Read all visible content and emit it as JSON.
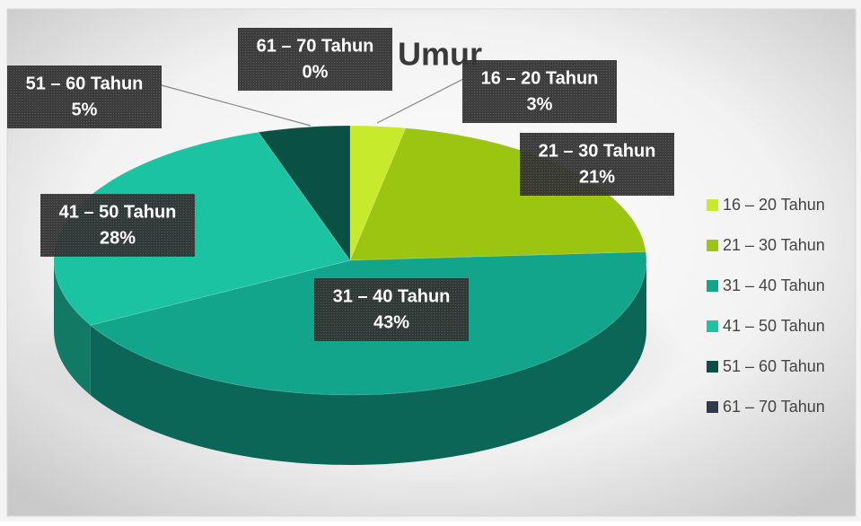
{
  "chart_data": {
    "type": "pie3d",
    "title": "Umur",
    "categories": [
      "16 – 20 Tahun",
      "21 – 30 Tahun",
      "31 – 40 Tahun",
      "41 – 50 Tahun",
      "51 – 60 Tahun",
      "61 – 70 Tahun"
    ],
    "values": [
      3,
      21,
      43,
      28,
      5,
      0
    ],
    "value_labels": [
      "3%",
      "21%",
      "43%",
      "28%",
      "5%",
      "0%"
    ],
    "colors": [
      "#c8ea2c",
      "#9cc511",
      "#13a58c",
      "#1cc3a2",
      "#0b5044",
      "#2f3a4a"
    ],
    "legend": "right"
  }
}
